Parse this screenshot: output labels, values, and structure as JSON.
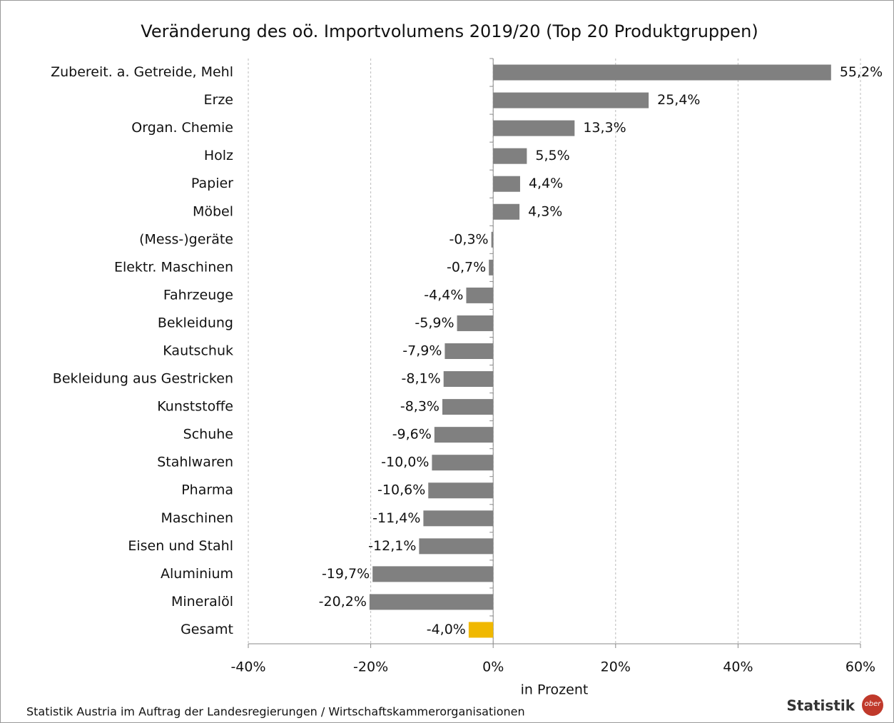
{
  "chart_data": {
    "type": "barh",
    "title": "Veränderung des oö. Importvolumens 2019/20 (Top 20 Produktgruppen)",
    "categories": [
      "Zubereit. a. Getreide, Mehl",
      "Erze",
      "Organ. Chemie",
      "Holz",
      "Papier",
      "Möbel",
      "(Mess-)geräte",
      "Elektr. Maschinen",
      "Fahrzeuge",
      "Bekleidung",
      "Kautschuk",
      "Bekleidung aus Gestricken",
      "Kunststoffe",
      "Schuhe",
      "Stahlwaren",
      "Pharma",
      "Maschinen",
      "Eisen und Stahl",
      "Aluminium",
      "Mineralöl",
      "Gesamt"
    ],
    "values": [
      55.2,
      25.4,
      13.3,
      5.5,
      4.4,
      4.3,
      -0.3,
      -0.7,
      -4.4,
      -5.9,
      -7.9,
      -8.1,
      -8.3,
      -9.6,
      -10.0,
      -10.6,
      -11.4,
      -12.1,
      -19.7,
      -20.2,
      -4.0
    ],
    "value_labels": [
      "55,2%",
      "25,4%",
      "13,3%",
      "5,5%",
      "4,4%",
      "4,3%",
      "-0,3%",
      "-0,7%",
      "-4,4%",
      "-5,9%",
      "-7,9%",
      "-8,1%",
      "-8,3%",
      "-9,6%",
      "-10,0%",
      "-10,6%",
      "-11,4%",
      "-12,1%",
      "-19,7%",
      "-20,2%",
      "-4,0%"
    ],
    "colors": [
      "#808080",
      "#808080",
      "#808080",
      "#808080",
      "#808080",
      "#808080",
      "#808080",
      "#808080",
      "#808080",
      "#808080",
      "#808080",
      "#808080",
      "#808080",
      "#808080",
      "#808080",
      "#808080",
      "#808080",
      "#808080",
      "#808080",
      "#808080",
      "#f0b800"
    ],
    "xlim": [
      -40,
      60
    ],
    "xticks": [
      {
        "value": -40,
        "label": "-40%"
      },
      {
        "value": -20,
        "label": "-20%"
      },
      {
        "value": 0,
        "label": "0%"
      },
      {
        "value": 20,
        "label": "20%"
      },
      {
        "value": 40,
        "label": "40%"
      },
      {
        "value": 60,
        "label": "60%"
      }
    ],
    "xlabel": "in Prozent",
    "grid": true,
    "source": "Statistik Austria im Auftrag der Landesregierungen / Wirtschaftskammerorganisationen",
    "logo": {
      "text": "Statistik",
      "badge": "ober"
    }
  }
}
